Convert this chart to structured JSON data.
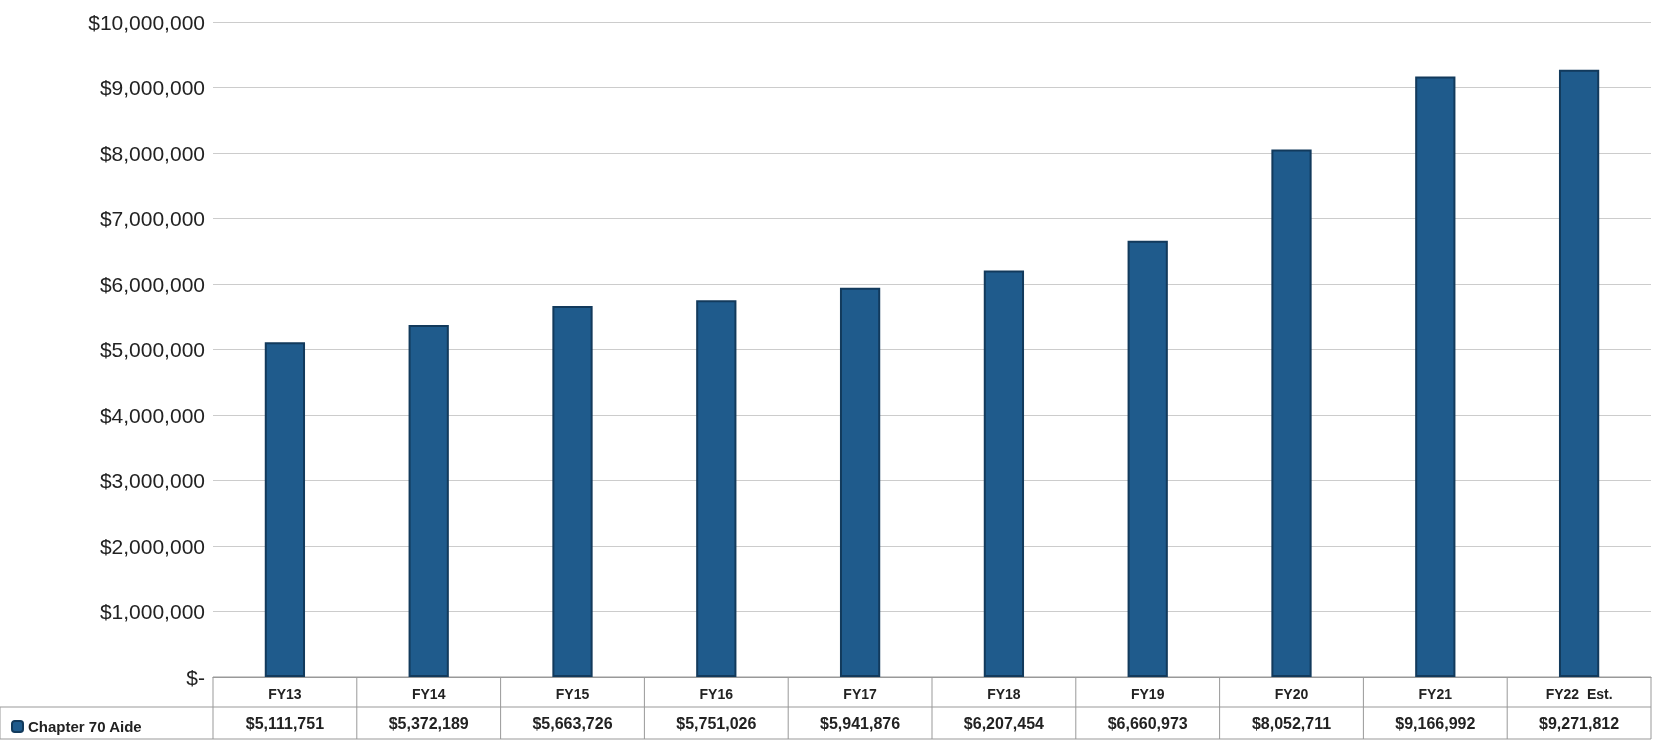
{
  "chart_data": {
    "type": "bar",
    "categories": [
      "FY13",
      "FY14",
      "FY15",
      "FY16",
      "FY17",
      "FY18",
      "FY19",
      "FY20",
      "FY21",
      "FY22  Est."
    ],
    "series": [
      {
        "name": "Chapter 70 Aide",
        "color": "#1f5b8c",
        "values": [
          5111751,
          5372189,
          5663726,
          5751026,
          5941876,
          6207454,
          6660973,
          8052711,
          9166992,
          9271812
        ],
        "value_labels": [
          "$5,111,751",
          "$5,372,189",
          "$5,663,726",
          "$5,751,026",
          "$5,941,876",
          "$6,207,454",
          "$6,660,973",
          "$8,052,711",
          "$9,166,992",
          "$9,271,812"
        ]
      }
    ],
    "ylim": [
      0,
      10000000
    ],
    "yticks": [
      {
        "value": 0,
        "label": "$-"
      },
      {
        "value": 1000000,
        "label": "$1,000,000"
      },
      {
        "value": 2000000,
        "label": "$2,000,000"
      },
      {
        "value": 3000000,
        "label": "$3,000,000"
      },
      {
        "value": 4000000,
        "label": "$4,000,000"
      },
      {
        "value": 5000000,
        "label": "$5,000,000"
      },
      {
        "value": 6000000,
        "label": "$6,000,000"
      },
      {
        "value": 7000000,
        "label": "$7,000,000"
      },
      {
        "value": 8000000,
        "label": "$8,000,000"
      },
      {
        "value": 9000000,
        "label": "$9,000,000"
      },
      {
        "value": 10000000,
        "label": "$10,000,000"
      }
    ],
    "grid": "y",
    "legend": "bottom left"
  }
}
